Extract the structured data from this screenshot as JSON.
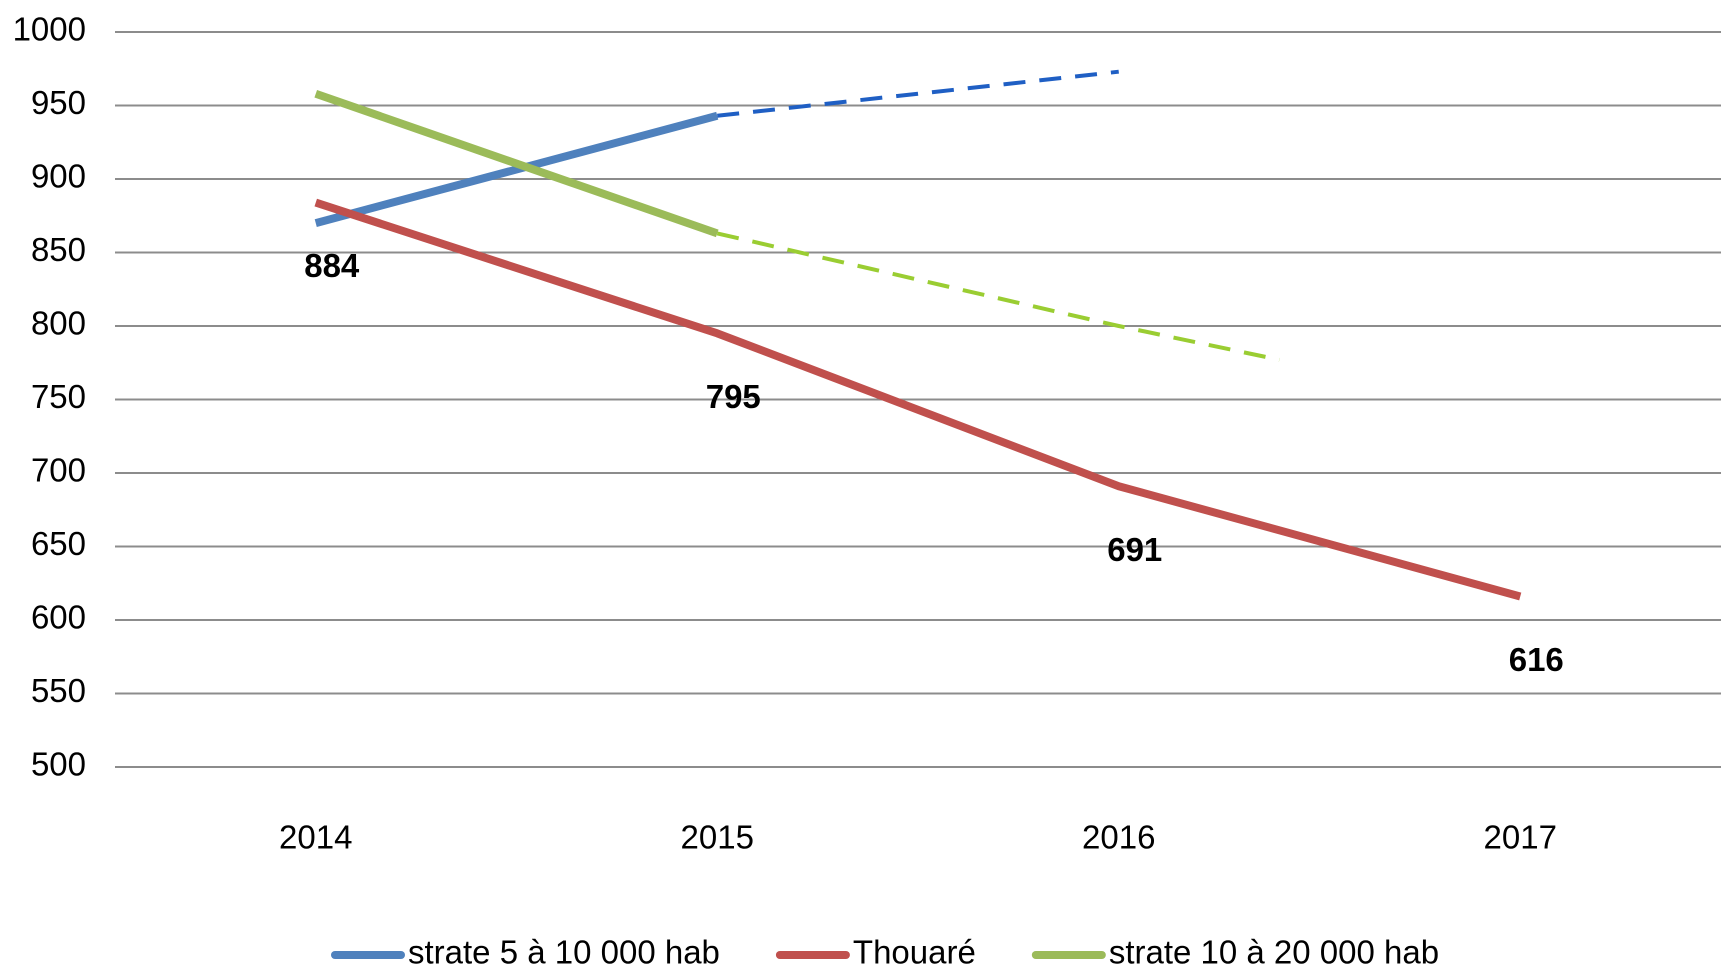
{
  "chart_data": {
    "type": "line",
    "x": [
      2014,
      2015,
      2016,
      2017
    ],
    "xlim": [
      2013.5,
      2017.5
    ],
    "xticks": [
      2014,
      2015,
      2016,
      2017
    ],
    "ylim": [
      500,
      1000
    ],
    "yticks": [
      500,
      550,
      600,
      650,
      700,
      750,
      800,
      850,
      900,
      950,
      1000
    ],
    "grid": true,
    "legend": "bottom",
    "series": [
      {
        "name": "strate 5 à 10 000 hab",
        "color": "#4f81bd",
        "values": [
          870,
          943,
          null,
          null
        ]
      },
      {
        "name": "Thouaré",
        "color": "#c0504d",
        "values": [
          884,
          795,
          691,
          616
        ],
        "show_value_labels": true
      },
      {
        "name": "strate 10 à 20 000 hab",
        "color": "#9bbb59",
        "values": [
          958,
          863,
          null,
          null
        ]
      }
    ],
    "projections": [
      {
        "color": "#1f5fc4",
        "style": "dashed",
        "x": [
          2015,
          2016
        ],
        "values": [
          943,
          973
        ]
      },
      {
        "color": "#9acd32",
        "style": "dashed",
        "x": [
          2015,
          2016,
          2016.4
        ],
        "values": [
          863,
          800,
          777
        ]
      }
    ]
  }
}
